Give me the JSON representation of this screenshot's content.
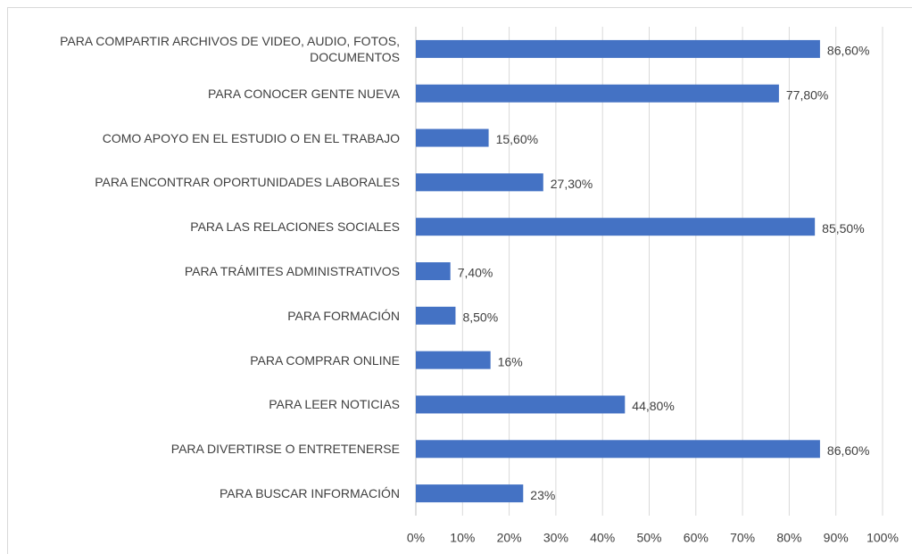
{
  "chart_data": {
    "type": "barh",
    "categories": [
      "PARA COMPARTIR ARCHIVOS DE VIDEO, AUDIO, FOTOS, DOCUMENTOS",
      "PARA CONOCER GENTE NUEVA",
      "COMO APOYO EN EL ESTUDIO O EN EL TRABAJO",
      "PARA ENCONTRAR OPORTUNIDADES LABORALES",
      "PARA LAS RELACIONES SOCIALES",
      "PARA TRÁMITES ADMINISTRATIVOS",
      "PARA FORMACIÓN",
      "PARA COMPRAR ONLINE",
      "PARA LEER NOTICIAS",
      "PARA DIVERTIRSE O ENTRETENERSE",
      "PARA BUSCAR INFORMACIÓN"
    ],
    "values": [
      86.6,
      77.8,
      15.6,
      27.3,
      85.5,
      7.4,
      8.5,
      16,
      44.8,
      86.6,
      23
    ],
    "value_labels": [
      "86,60%",
      "77,80%",
      "15,60%",
      "27,30%",
      "85,50%",
      "7,40%",
      "8,50%",
      "16%",
      "44,80%",
      "86,60%",
      "23%"
    ],
    "color": "#4472c4",
    "xlim": [
      0,
      100
    ],
    "xticks": [
      {
        "value": 0,
        "label": "0%"
      },
      {
        "value": 10,
        "label": "10%"
      },
      {
        "value": 20,
        "label": "20%"
      },
      {
        "value": 30,
        "label": "30%"
      },
      {
        "value": 40,
        "label": "40%"
      },
      {
        "value": 50,
        "label": "50%"
      },
      {
        "value": 60,
        "label": "60%"
      },
      {
        "value": 70,
        "label": "70%"
      },
      {
        "value": 80,
        "label": "80%"
      },
      {
        "value": 90,
        "label": "90%"
      },
      {
        "value": 100,
        "label": "100%"
      }
    ],
    "grid": true
  }
}
